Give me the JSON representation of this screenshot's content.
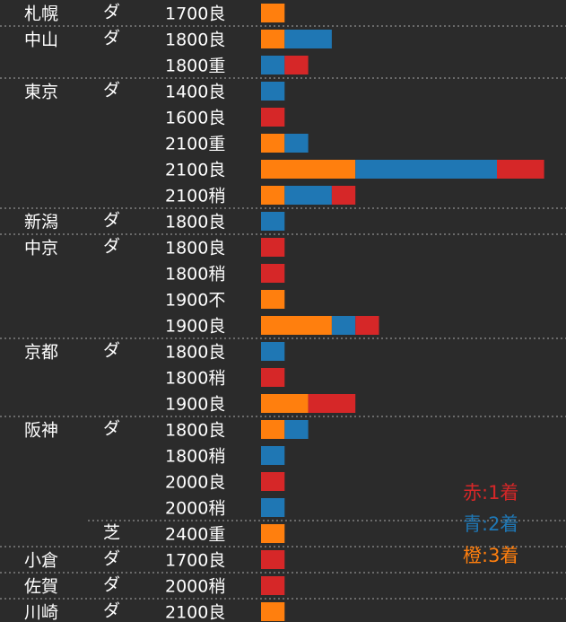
{
  "chart_data": {
    "type": "bar",
    "stacked": true,
    "orientation": "horizontal",
    "category_columns": [
      "venue",
      "surface",
      "condition"
    ],
    "rows": [
      {
        "venue": "札幌",
        "surface": "ダ",
        "condition": "1700良",
        "first": 0,
        "second": 0,
        "third": 1
      },
      {
        "venue": "中山",
        "surface": "ダ",
        "condition": "1800良",
        "first": 0,
        "second": 2,
        "third": 1
      },
      {
        "venue": "",
        "surface": "",
        "condition": "1800重",
        "first": 1,
        "second": 1,
        "third": 0
      },
      {
        "venue": "東京",
        "surface": "ダ",
        "condition": "1400良",
        "first": 0,
        "second": 1,
        "third": 0
      },
      {
        "venue": "",
        "surface": "",
        "condition": "1600良",
        "first": 1,
        "second": 0,
        "third": 0
      },
      {
        "venue": "",
        "surface": "",
        "condition": "2100重",
        "first": 0,
        "second": 1,
        "third": 1
      },
      {
        "venue": "",
        "surface": "",
        "condition": "2100良",
        "first": 2,
        "second": 6,
        "third": 4
      },
      {
        "venue": "",
        "surface": "",
        "condition": "2100稍",
        "first": 1,
        "second": 2,
        "third": 1
      },
      {
        "venue": "新潟",
        "surface": "ダ",
        "condition": "1800良",
        "first": 0,
        "second": 1,
        "third": 0
      },
      {
        "venue": "中京",
        "surface": "ダ",
        "condition": "1800良",
        "first": 1,
        "second": 0,
        "third": 0
      },
      {
        "venue": "",
        "surface": "",
        "condition": "1800稍",
        "first": 1,
        "second": 0,
        "third": 0
      },
      {
        "venue": "",
        "surface": "",
        "condition": "1900不",
        "first": 0,
        "second": 0,
        "third": 1
      },
      {
        "venue": "",
        "surface": "",
        "condition": "1900良",
        "first": 1,
        "second": 1,
        "third": 3
      },
      {
        "venue": "京都",
        "surface": "ダ",
        "condition": "1800良",
        "first": 0,
        "second": 1,
        "third": 0
      },
      {
        "venue": "",
        "surface": "",
        "condition": "1800稍",
        "first": 1,
        "second": 0,
        "third": 0
      },
      {
        "venue": "",
        "surface": "",
        "condition": "1900良",
        "first": 2,
        "second": 0,
        "third": 2
      },
      {
        "venue": "阪神",
        "surface": "ダ",
        "condition": "1800良",
        "first": 0,
        "second": 1,
        "third": 1
      },
      {
        "venue": "",
        "surface": "",
        "condition": "1800稍",
        "first": 0,
        "second": 1,
        "third": 0
      },
      {
        "venue": "",
        "surface": "",
        "condition": "2000良",
        "first": 1,
        "second": 0,
        "third": 0
      },
      {
        "venue": "",
        "surface": "",
        "condition": "2000稍",
        "first": 0,
        "second": 1,
        "third": 0
      },
      {
        "venue": "",
        "surface": "芝",
        "condition": "2400重",
        "first": 0,
        "second": 0,
        "third": 1
      },
      {
        "venue": "小倉",
        "surface": "ダ",
        "condition": "1700良",
        "first": 1,
        "second": 0,
        "third": 0
      },
      {
        "venue": "佐賀",
        "surface": "ダ",
        "condition": "2000稍",
        "first": 1,
        "second": 0,
        "third": 0
      },
      {
        "venue": "川崎",
        "surface": "ダ",
        "condition": "2100良",
        "first": 0,
        "second": 0,
        "third": 1
      }
    ],
    "stack_order": [
      "third",
      "second",
      "first"
    ],
    "colors": {
      "first": "#d62728",
      "second": "#1f77b4",
      "third": "#ff7f0e"
    },
    "legend": [
      {
        "key": "first",
        "text": "赤:1着",
        "color": "#d62728"
      },
      {
        "key": "second",
        "text": "青:2着",
        "color": "#1f77b4"
      },
      {
        "key": "third",
        "text": "橙:3着",
        "color": "#ff7f0e"
      }
    ],
    "legend_position": "bottom-right",
    "grid": false
  }
}
